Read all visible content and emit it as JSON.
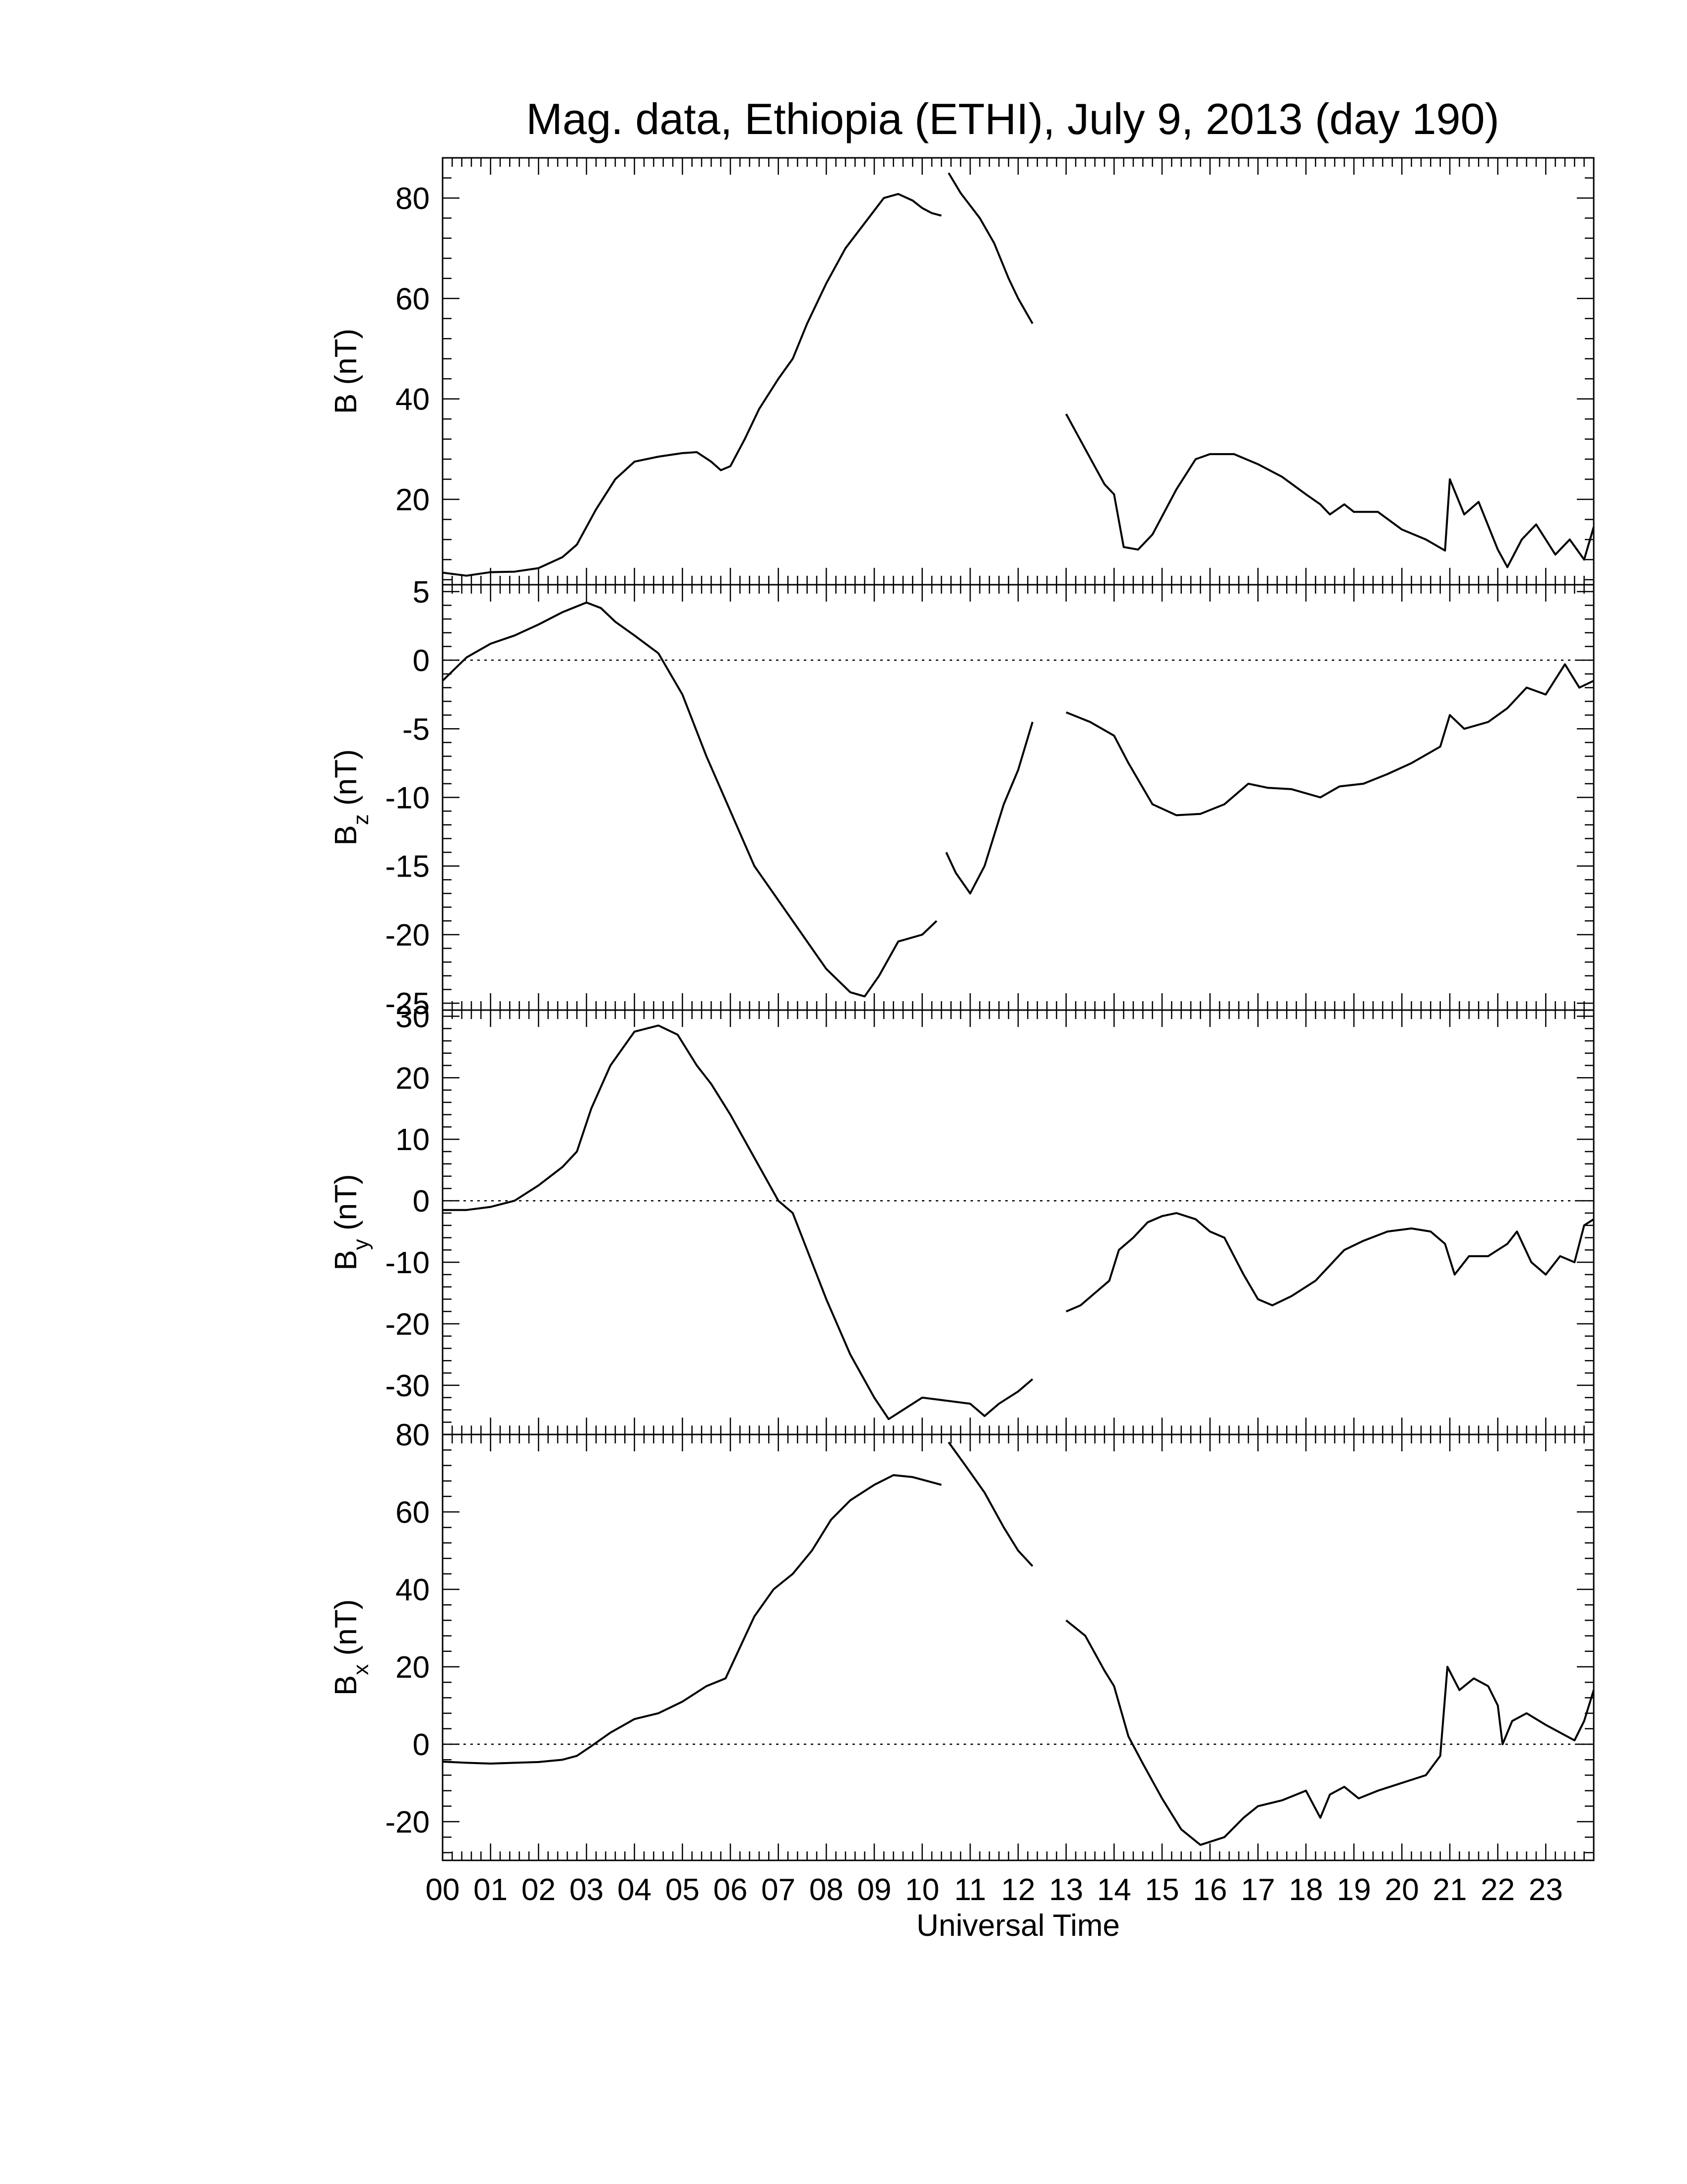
{
  "title": "Mag. data, Ethiopia (ETHI), July 9, 2013 (day 190)",
  "xlabel": "Universal Time",
  "x_tick_labels": [
    "00",
    "01",
    "02",
    "03",
    "04",
    "05",
    "06",
    "07",
    "08",
    "09",
    "10",
    "11",
    "12",
    "13",
    "14",
    "15",
    "16",
    "17",
    "18",
    "19",
    "20",
    "21",
    "22",
    "23"
  ],
  "chart_data": [
    {
      "type": "line",
      "ylabel": "B (nT)",
      "ylabel_main": "B",
      "ylabel_sub": "",
      "ylabel_unit": "(nT)",
      "xlim": [
        0,
        24
      ],
      "ylim": [
        3,
        88
      ],
      "yticks": [
        20,
        40,
        60,
        80
      ],
      "zero_line": false,
      "segments": [
        [
          [
            0,
            5.4
          ],
          [
            0.5,
            4.8
          ],
          [
            1,
            5.5
          ],
          [
            1.5,
            5.6
          ],
          [
            2,
            6.3
          ],
          [
            2.5,
            8.5
          ],
          [
            2.8,
            11
          ],
          [
            3.2,
            18
          ],
          [
            3.6,
            24
          ],
          [
            4,
            27.5
          ],
          [
            4.5,
            28.5
          ],
          [
            5,
            29.2
          ],
          [
            5.3,
            29.4
          ],
          [
            5.6,
            27.5
          ],
          [
            5.8,
            25.8
          ],
          [
            6.0,
            26.6
          ],
          [
            6.3,
            32
          ],
          [
            6.6,
            38
          ],
          [
            7,
            44
          ],
          [
            7.3,
            48
          ],
          [
            7.6,
            55
          ],
          [
            8,
            63
          ],
          [
            8.4,
            70
          ],
          [
            8.8,
            75
          ],
          [
            9.2,
            80
          ],
          [
            9.5,
            80.8
          ],
          [
            9.8,
            79.5
          ],
          [
            10,
            78
          ],
          [
            10.2,
            77
          ],
          [
            10.4,
            76.5
          ]
        ],
        [
          [
            10.55,
            85
          ],
          [
            10.8,
            81
          ],
          [
            11.2,
            76
          ],
          [
            11.5,
            71
          ],
          [
            11.8,
            64
          ],
          [
            12,
            60
          ],
          [
            12.3,
            55
          ]
        ],
        [
          [
            13.0,
            37
          ],
          [
            13.4,
            30
          ],
          [
            13.8,
            23
          ],
          [
            14.0,
            21
          ],
          [
            14.2,
            10.5
          ],
          [
            14.5,
            10
          ],
          [
            14.8,
            13
          ],
          [
            15.3,
            22
          ],
          [
            15.7,
            28
          ],
          [
            16,
            29
          ],
          [
            16.5,
            29
          ],
          [
            17,
            27
          ],
          [
            17.5,
            24.5
          ],
          [
            18,
            21
          ],
          [
            18.3,
            19
          ],
          [
            18.5,
            17
          ],
          [
            18.8,
            19
          ],
          [
            19,
            17.5
          ],
          [
            19.5,
            17.5
          ],
          [
            20,
            14
          ],
          [
            20.5,
            12
          ],
          [
            20.9,
            9.8
          ],
          [
            21.0,
            24
          ],
          [
            21.3,
            17
          ],
          [
            21.6,
            19.5
          ],
          [
            22,
            10
          ],
          [
            22.2,
            6.5
          ],
          [
            22.5,
            12
          ],
          [
            22.8,
            15
          ],
          [
            23.2,
            9
          ],
          [
            23.5,
            12
          ],
          [
            23.8,
            8
          ],
          [
            24,
            14.5
          ]
        ]
      ]
    },
    {
      "type": "line",
      "ylabel": "B_z (nT)",
      "ylabel_main": "B",
      "ylabel_sub": "z",
      "ylabel_unit": "(nT)",
      "xlim": [
        0,
        24
      ],
      "ylim": [
        -25.5,
        5.5
      ],
      "yticks": [
        5,
        0,
        -5,
        -10,
        -15,
        -20,
        -25
      ],
      "zero_line": true,
      "segments": [
        [
          [
            0,
            -1.5
          ],
          [
            0.5,
            0.2
          ],
          [
            1,
            1.2
          ],
          [
            1.5,
            1.8
          ],
          [
            2,
            2.6
          ],
          [
            2.5,
            3.5
          ],
          [
            3,
            4.2
          ],
          [
            3.3,
            3.8
          ],
          [
            3.6,
            2.8
          ],
          [
            4,
            1.8
          ],
          [
            4.5,
            0.5
          ],
          [
            5,
            -2.5
          ],
          [
            5.5,
            -7
          ],
          [
            6,
            -11
          ],
          [
            6.5,
            -15
          ],
          [
            7,
            -17.5
          ],
          [
            7.5,
            -20
          ],
          [
            8,
            -22.5
          ],
          [
            8.5,
            -24.2
          ],
          [
            8.8,
            -24.5
          ],
          [
            9.1,
            -23
          ],
          [
            9.5,
            -20.5
          ],
          [
            10,
            -20
          ],
          [
            10.3,
            -19
          ]
        ],
        [
          [
            10.5,
            -14
          ],
          [
            10.7,
            -15.5
          ],
          [
            11.0,
            -17
          ],
          [
            11.3,
            -15
          ],
          [
            11.7,
            -10.5
          ],
          [
            12.0,
            -8
          ],
          [
            12.3,
            -4.5
          ]
        ],
        [
          [
            13.0,
            -3.8
          ],
          [
            13.5,
            -4.5
          ],
          [
            14,
            -5.5
          ],
          [
            14.3,
            -7.5
          ],
          [
            14.8,
            -10.5
          ],
          [
            15.3,
            -11.3
          ],
          [
            15.8,
            -11.2
          ],
          [
            16.3,
            -10.5
          ],
          [
            16.8,
            -9
          ],
          [
            17.2,
            -9.3
          ],
          [
            17.7,
            -9.4
          ],
          [
            18.3,
            -10
          ],
          [
            18.7,
            -9.2
          ],
          [
            19.2,
            -9
          ],
          [
            19.7,
            -8.3
          ],
          [
            20.2,
            -7.5
          ],
          [
            20.8,
            -6.3
          ],
          [
            21.0,
            -4
          ],
          [
            21.3,
            -5
          ],
          [
            21.8,
            -4.5
          ],
          [
            22.2,
            -3.5
          ],
          [
            22.6,
            -2
          ],
          [
            23,
            -2.5
          ],
          [
            23.4,
            -0.3
          ],
          [
            23.7,
            -2
          ],
          [
            24,
            -1.5
          ]
        ]
      ]
    },
    {
      "type": "line",
      "ylabel": "B_y (nT)",
      "ylabel_main": "B",
      "ylabel_sub": "y",
      "ylabel_unit": "(nT)",
      "xlim": [
        0,
        24
      ],
      "ylim": [
        -38,
        31
      ],
      "yticks": [
        30,
        20,
        10,
        0,
        -10,
        -20,
        -30
      ],
      "zero_line": true,
      "segments": [
        [
          [
            0,
            -1.5
          ],
          [
            0.5,
            -1.5
          ],
          [
            1,
            -1
          ],
          [
            1.5,
            0
          ],
          [
            2,
            2.5
          ],
          [
            2.5,
            5.5
          ],
          [
            2.8,
            8
          ],
          [
            3.1,
            15
          ],
          [
            3.5,
            22
          ],
          [
            4,
            27.5
          ],
          [
            4.5,
            28.5
          ],
          [
            4.9,
            27
          ],
          [
            5.3,
            22
          ],
          [
            5.6,
            19
          ],
          [
            6,
            14
          ],
          [
            6.5,
            7
          ],
          [
            7,
            0
          ],
          [
            7.3,
            -2
          ],
          [
            7.6,
            -8
          ],
          [
            8,
            -16
          ],
          [
            8.5,
            -25
          ],
          [
            9,
            -32
          ],
          [
            9.3,
            -35.5
          ],
          [
            9.6,
            -34
          ],
          [
            10,
            -32
          ],
          [
            10.5,
            -32.5
          ],
          [
            11,
            -33
          ],
          [
            11.3,
            -35
          ],
          [
            11.6,
            -33
          ],
          [
            12,
            -31
          ],
          [
            12.3,
            -29
          ]
        ],
        [
          [
            13.0,
            -18
          ],
          [
            13.3,
            -17
          ],
          [
            13.6,
            -15
          ],
          [
            13.9,
            -13
          ],
          [
            14.1,
            -8
          ],
          [
            14.4,
            -6
          ],
          [
            14.7,
            -3.5
          ],
          [
            15,
            -2.5
          ],
          [
            15.3,
            -2
          ],
          [
            15.7,
            -3
          ],
          [
            16,
            -5
          ],
          [
            16.3,
            -6
          ],
          [
            16.7,
            -12
          ],
          [
            17,
            -16
          ],
          [
            17.3,
            -17
          ],
          [
            17.7,
            -15.5
          ],
          [
            18.2,
            -13
          ],
          [
            18.5,
            -10.5
          ],
          [
            18.8,
            -8
          ],
          [
            19.2,
            -6.5
          ],
          [
            19.7,
            -5
          ],
          [
            20.2,
            -4.5
          ],
          [
            20.6,
            -5
          ],
          [
            20.9,
            -7
          ],
          [
            21.1,
            -12
          ],
          [
            21.4,
            -9
          ],
          [
            21.8,
            -9
          ],
          [
            22.2,
            -7
          ],
          [
            22.4,
            -5
          ],
          [
            22.7,
            -10
          ],
          [
            23,
            -12
          ],
          [
            23.3,
            -9
          ],
          [
            23.6,
            -10
          ],
          [
            23.8,
            -4
          ],
          [
            24,
            -3
          ]
        ]
      ]
    },
    {
      "type": "line",
      "ylabel": "B_x (nT)",
      "ylabel_main": "B",
      "ylabel_sub": "x",
      "ylabel_unit": "(nT)",
      "xlim": [
        0,
        24
      ],
      "ylim": [
        -30,
        80
      ],
      "yticks": [
        80,
        60,
        40,
        20,
        0,
        -20
      ],
      "zero_line": true,
      "segments": [
        [
          [
            0,
            -4.5
          ],
          [
            0.5,
            -4.8
          ],
          [
            1,
            -5
          ],
          [
            1.5,
            -4.8
          ],
          [
            2,
            -4.6
          ],
          [
            2.5,
            -4
          ],
          [
            2.8,
            -3
          ],
          [
            3.1,
            -0.5
          ],
          [
            3.5,
            3
          ],
          [
            4,
            6.5
          ],
          [
            4.5,
            8
          ],
          [
            5,
            11
          ],
          [
            5.5,
            15
          ],
          [
            5.9,
            17
          ],
          [
            6.2,
            25
          ],
          [
            6.5,
            33
          ],
          [
            6.9,
            40
          ],
          [
            7.3,
            44
          ],
          [
            7.7,
            50
          ],
          [
            8.1,
            58
          ],
          [
            8.5,
            63
          ],
          [
            9,
            67
          ],
          [
            9.4,
            69.5
          ],
          [
            9.8,
            69
          ],
          [
            10.1,
            68
          ],
          [
            10.4,
            67
          ]
        ],
        [
          [
            10.55,
            78
          ],
          [
            10.9,
            72
          ],
          [
            11.3,
            65
          ],
          [
            11.7,
            56
          ],
          [
            12,
            50
          ],
          [
            12.3,
            46
          ]
        ],
        [
          [
            13.0,
            32
          ],
          [
            13.4,
            28
          ],
          [
            13.8,
            19
          ],
          [
            14.0,
            15
          ],
          [
            14.3,
            2
          ],
          [
            14.6,
            -5
          ],
          [
            15,
            -14
          ],
          [
            15.4,
            -22
          ],
          [
            15.8,
            -26
          ],
          [
            16.3,
            -24
          ],
          [
            16.7,
            -19
          ],
          [
            17,
            -16
          ],
          [
            17.5,
            -14.5
          ],
          [
            18,
            -12
          ],
          [
            18.3,
            -19
          ],
          [
            18.5,
            -13
          ],
          [
            18.8,
            -11
          ],
          [
            19.1,
            -14
          ],
          [
            19.5,
            -12
          ],
          [
            20,
            -10
          ],
          [
            20.5,
            -8
          ],
          [
            20.8,
            -3
          ],
          [
            20.95,
            20
          ],
          [
            21.2,
            14
          ],
          [
            21.5,
            17
          ],
          [
            21.8,
            15
          ],
          [
            22.0,
            10
          ],
          [
            22.1,
            0
          ],
          [
            22.3,
            6
          ],
          [
            22.6,
            8
          ],
          [
            23,
            5
          ],
          [
            23.3,
            3
          ],
          [
            23.6,
            1
          ],
          [
            23.8,
            6
          ],
          [
            24,
            14
          ]
        ]
      ]
    }
  ]
}
